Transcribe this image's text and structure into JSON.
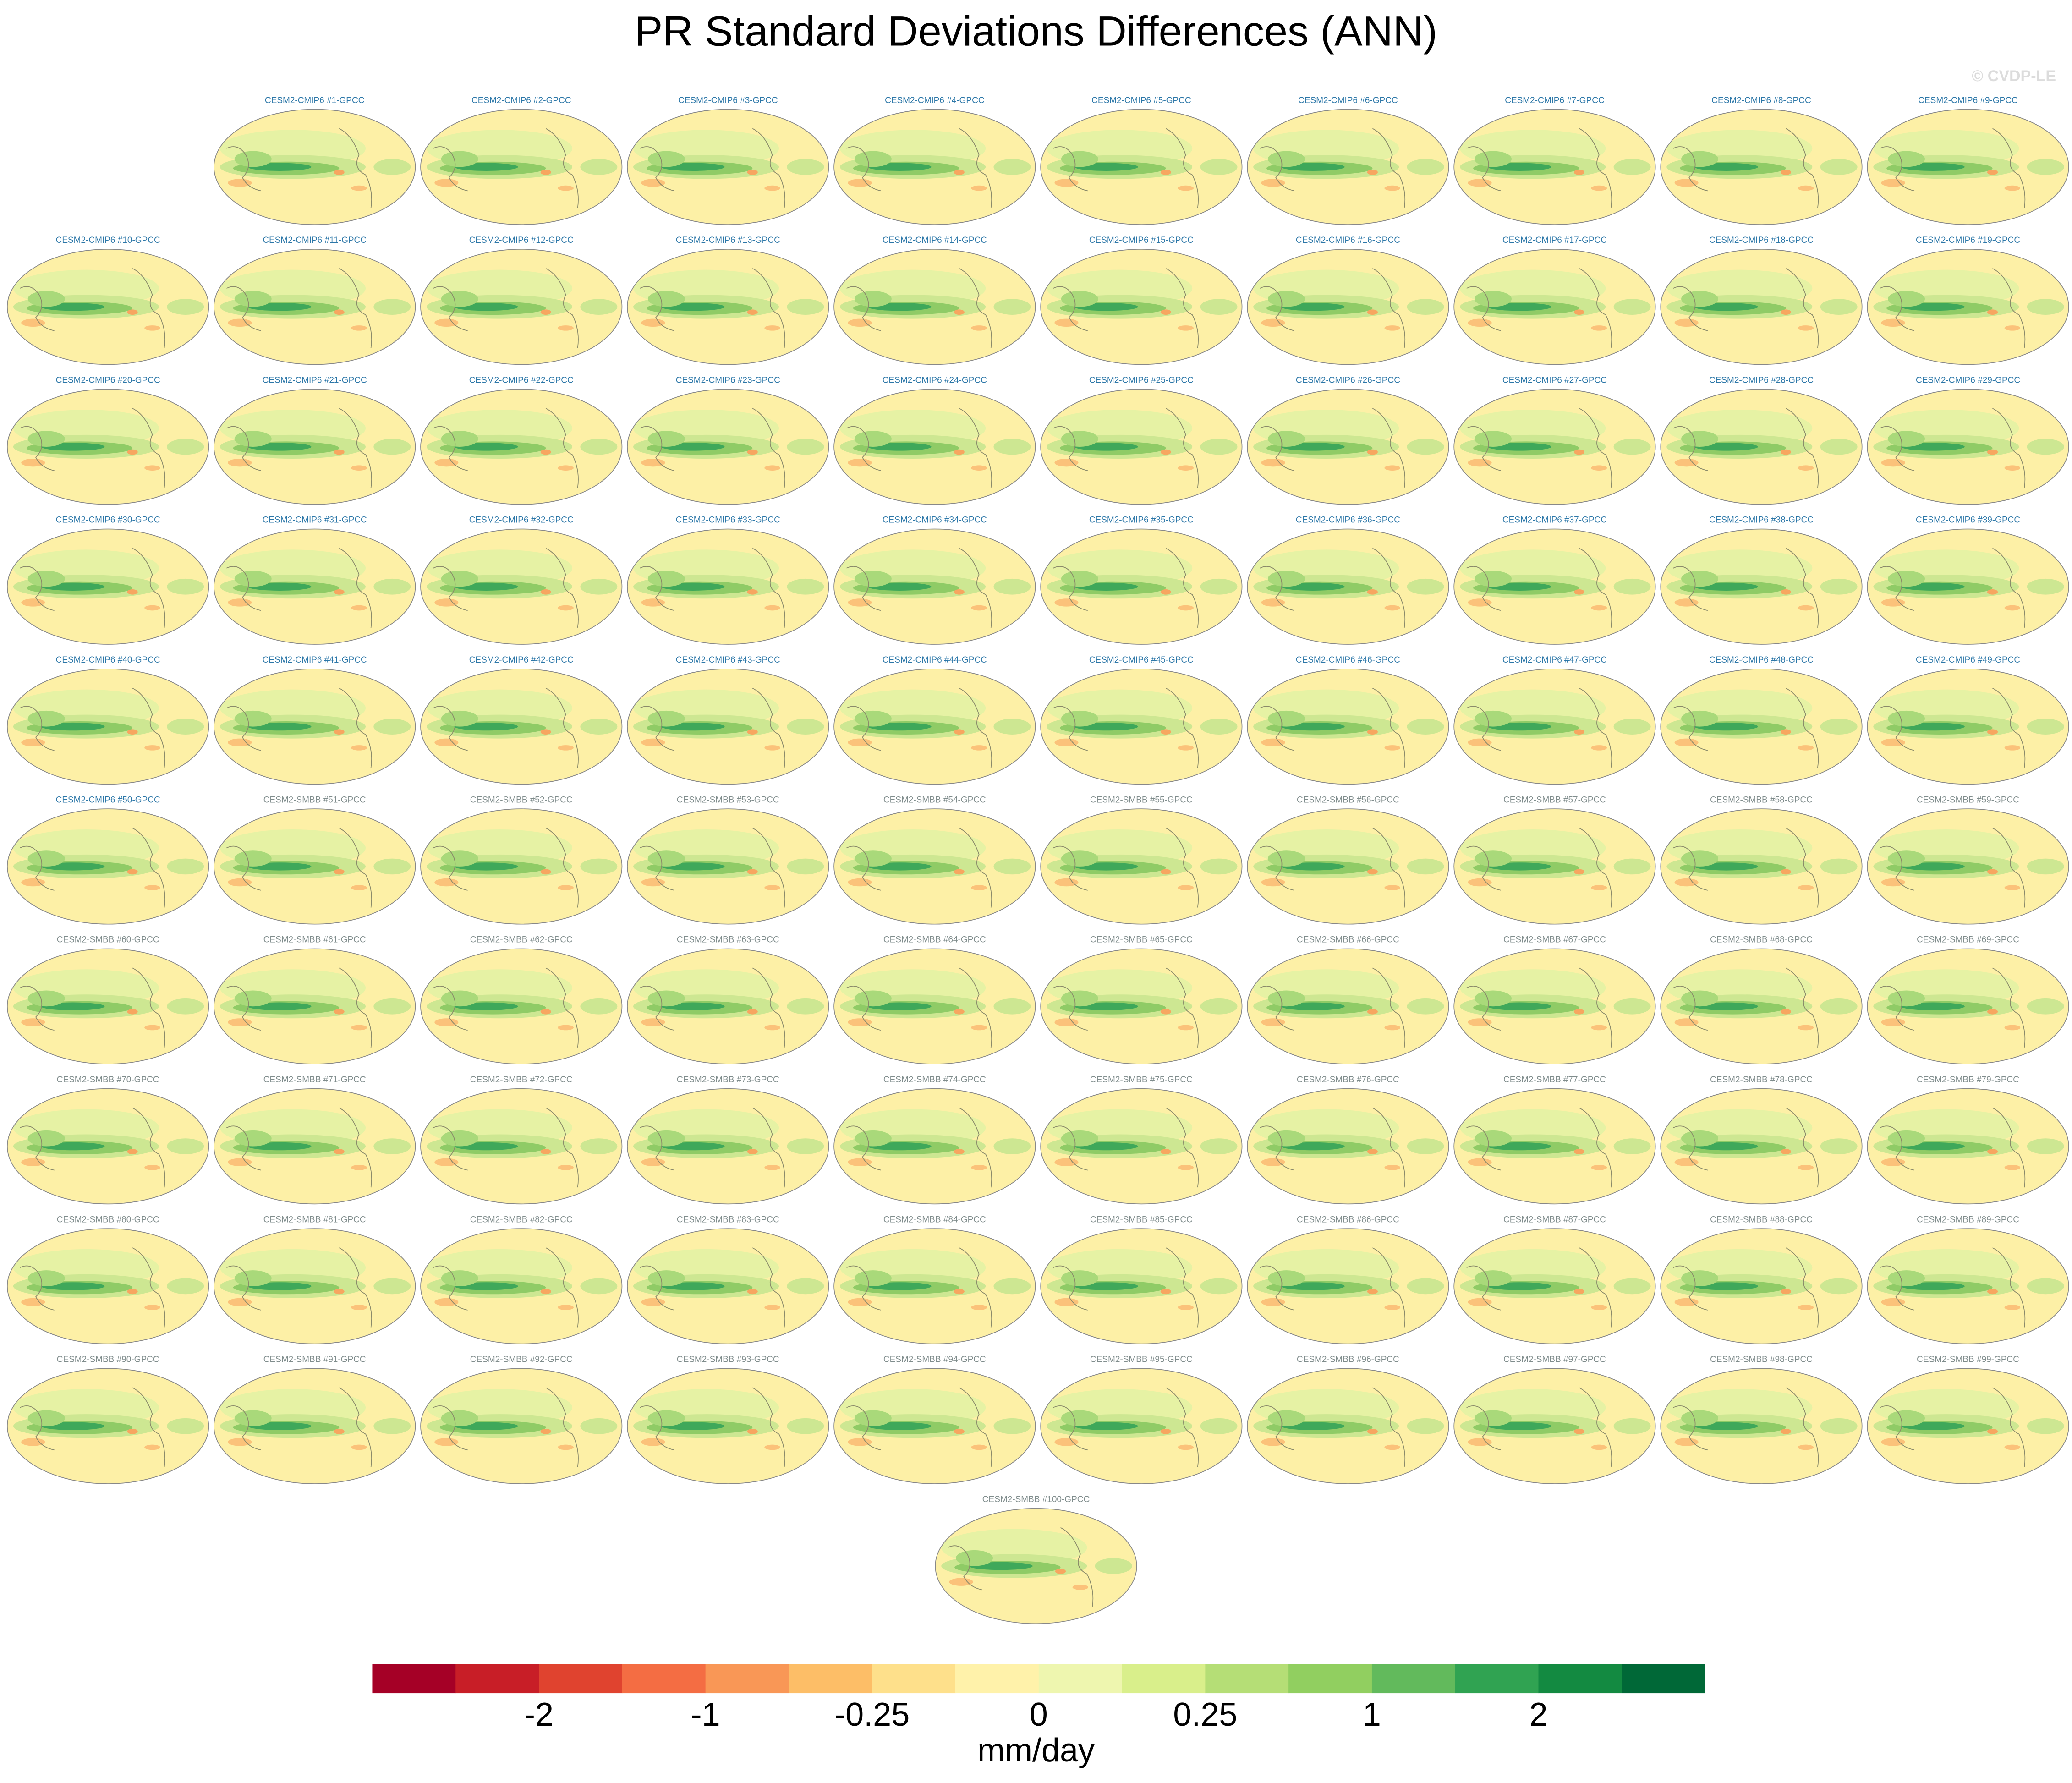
{
  "title": "PR Standard Deviations Differences (ANN)",
  "watermark": "© CVDP-LE",
  "panel_groups": [
    {
      "title_color": "#2c77a8",
      "titles": [
        "CESM2-CMIP6 #1-GPCC",
        "CESM2-CMIP6 #2-GPCC",
        "CESM2-CMIP6 #3-GPCC",
        "CESM2-CMIP6 #4-GPCC",
        "CESM2-CMIP6 #5-GPCC",
        "CESM2-CMIP6 #6-GPCC",
        "CESM2-CMIP6 #7-GPCC",
        "CESM2-CMIP6 #8-GPCC",
        "CESM2-CMIP6 #9-GPCC",
        "CESM2-CMIP6 #10-GPCC",
        "CESM2-CMIP6 #11-GPCC",
        "CESM2-CMIP6 #12-GPCC",
        "CESM2-CMIP6 #13-GPCC",
        "CESM2-CMIP6 #14-GPCC",
        "CESM2-CMIP6 #15-GPCC",
        "CESM2-CMIP6 #16-GPCC",
        "CESM2-CMIP6 #17-GPCC",
        "CESM2-CMIP6 #18-GPCC",
        "CESM2-CMIP6 #19-GPCC",
        "CESM2-CMIP6 #20-GPCC",
        "CESM2-CMIP6 #21-GPCC",
        "CESM2-CMIP6 #22-GPCC",
        "CESM2-CMIP6 #23-GPCC",
        "CESM2-CMIP6 #24-GPCC",
        "CESM2-CMIP6 #25-GPCC",
        "CESM2-CMIP6 #26-GPCC",
        "CESM2-CMIP6 #27-GPCC",
        "CESM2-CMIP6 #28-GPCC",
        "CESM2-CMIP6 #29-GPCC",
        "CESM2-CMIP6 #30-GPCC",
        "CESM2-CMIP6 #31-GPCC",
        "CESM2-CMIP6 #32-GPCC",
        "CESM2-CMIP6 #33-GPCC",
        "CESM2-CMIP6 #34-GPCC",
        "CESM2-CMIP6 #35-GPCC",
        "CESM2-CMIP6 #36-GPCC",
        "CESM2-CMIP6 #37-GPCC",
        "CESM2-CMIP6 #38-GPCC",
        "CESM2-CMIP6 #39-GPCC",
        "CESM2-CMIP6 #40-GPCC",
        "CESM2-CMIP6 #41-GPCC",
        "CESM2-CMIP6 #42-GPCC",
        "CESM2-CMIP6 #43-GPCC",
        "CESM2-CMIP6 #44-GPCC",
        "CESM2-CMIP6 #45-GPCC",
        "CESM2-CMIP6 #46-GPCC",
        "CESM2-CMIP6 #47-GPCC",
        "CESM2-CMIP6 #48-GPCC",
        "CESM2-CMIP6 #49-GPCC",
        "CESM2-CMIP6 #50-GPCC"
      ]
    },
    {
      "title_color": "#7f8c8c",
      "titles": [
        "CESM2-SMBB #51-GPCC",
        "CESM2-SMBB #52-GPCC",
        "CESM2-SMBB #53-GPCC",
        "CESM2-SMBB #54-GPCC",
        "CESM2-SMBB #55-GPCC",
        "CESM2-SMBB #56-GPCC",
        "CESM2-SMBB #57-GPCC",
        "CESM2-SMBB #58-GPCC",
        "CESM2-SMBB #59-GPCC",
        "CESM2-SMBB #60-GPCC",
        "CESM2-SMBB #61-GPCC",
        "CESM2-SMBB #62-GPCC",
        "CESM2-SMBB #63-GPCC",
        "CESM2-SMBB #64-GPCC",
        "CESM2-SMBB #65-GPCC",
        "CESM2-SMBB #66-GPCC",
        "CESM2-SMBB #67-GPCC",
        "CESM2-SMBB #68-GPCC",
        "CESM2-SMBB #69-GPCC",
        "CESM2-SMBB #70-GPCC",
        "CESM2-SMBB #71-GPCC",
        "CESM2-SMBB #72-GPCC",
        "CESM2-SMBB #73-GPCC",
        "CESM2-SMBB #74-GPCC",
        "CESM2-SMBB #75-GPCC",
        "CESM2-SMBB #76-GPCC",
        "CESM2-SMBB #77-GPCC",
        "CESM2-SMBB #78-GPCC",
        "CESM2-SMBB #79-GPCC",
        "CESM2-SMBB #80-GPCC",
        "CESM2-SMBB #81-GPCC",
        "CESM2-SMBB #82-GPCC",
        "CESM2-SMBB #83-GPCC",
        "CESM2-SMBB #84-GPCC",
        "CESM2-SMBB #85-GPCC",
        "CESM2-SMBB #86-GPCC",
        "CESM2-SMBB #87-GPCC",
        "CESM2-SMBB #88-GPCC",
        "CESM2-SMBB #89-GPCC",
        "CESM2-SMBB #90-GPCC",
        "CESM2-SMBB #91-GPCC",
        "CESM2-SMBB #92-GPCC",
        "CESM2-SMBB #93-GPCC",
        "CESM2-SMBB #94-GPCC",
        "CESM2-SMBB #95-GPCC",
        "CESM2-SMBB #96-GPCC",
        "CESM2-SMBB #97-GPCC",
        "CESM2-SMBB #98-GPCC",
        "CESM2-SMBB #99-GPCC",
        "CESM2-SMBB #100-GPCC"
      ]
    }
  ],
  "colorbar": {
    "colors": [
      "#a50026",
      "#c81e27",
      "#e0432f",
      "#f46d43",
      "#f99756",
      "#fdbe67",
      "#fee08b",
      "#fff2aa",
      "#eef6af",
      "#d9ef8b",
      "#b5de76",
      "#91cf60",
      "#62ba5c",
      "#30a352",
      "#138a41",
      "#006837"
    ],
    "ticks": [
      -2,
      -1,
      -0.25,
      0,
      0.25,
      1,
      2
    ],
    "label": "mm/day"
  }
}
